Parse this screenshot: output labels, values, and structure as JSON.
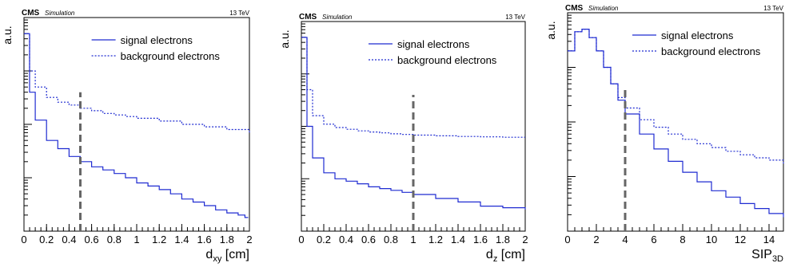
{
  "figure": {
    "experiment": "CMS",
    "tag": "Simulation",
    "energy": "13 TeV"
  },
  "chart_data": [
    {
      "type": "line",
      "title": "",
      "ylabel": "a.u.",
      "xlabel": "d",
      "xlabel_sub": "xy",
      "xlabel_unit": " [cm]",
      "xlim": [
        0,
        2
      ],
      "yscale": "log",
      "ylim": [
        1e-05,
        0.1
      ],
      "xticks": [
        0,
        0.2,
        0.4,
        0.6,
        0.8,
        1,
        1.2,
        1.4,
        1.6,
        1.8,
        2
      ],
      "xticklabels": [
        "0",
        "0.2",
        "0.4",
        "0.6",
        "0.8",
        "1",
        "1.2",
        "1.4",
        "1.6",
        "1.8",
        "2"
      ],
      "legend_position": "top-right",
      "cut_value": 0.5,
      "series": [
        {
          "name": "signal electrons",
          "style": "solid",
          "x": [
            0,
            0.05,
            0.1,
            0.2,
            0.3,
            0.4,
            0.5,
            0.6,
            0.7,
            0.8,
            0.9,
            1.0,
            1.1,
            1.2,
            1.3,
            1.4,
            1.5,
            1.6,
            1.7,
            1.8,
            1.9,
            1.96
          ],
          "y": [
            0.05,
            0.004,
            0.0012,
            0.0005,
            0.00035,
            0.00025,
            0.0002,
            0.00016,
            0.00014,
            0.00012,
            0.0001,
            8e-05,
            7e-05,
            6e-05,
            5e-05,
            4e-05,
            3.5e-05,
            3e-05,
            2.5e-05,
            2.2e-05,
            2e-05,
            1.8e-05
          ]
        },
        {
          "name": "background electrons",
          "style": "dotted",
          "x": [
            0,
            0.05,
            0.1,
            0.2,
            0.3,
            0.4,
            0.5,
            0.6,
            0.7,
            0.8,
            0.9,
            1.0,
            1.2,
            1.4,
            1.6,
            1.8,
            2.0
          ],
          "y": [
            0.05,
            0.01,
            0.005,
            0.0032,
            0.0026,
            0.0023,
            0.002,
            0.0018,
            0.0016,
            0.0015,
            0.0014,
            0.0013,
            0.00115,
            0.001,
            0.0009,
            0.0008,
            0.0007
          ]
        }
      ]
    },
    {
      "type": "line",
      "title": "",
      "ylabel": "a.u.",
      "xlabel": "d",
      "xlabel_sub": "z",
      "xlabel_unit": " [cm]",
      "xlim": [
        0,
        2
      ],
      "yscale": "log",
      "ylim": [
        1e-05,
        0.1
      ],
      "xticks": [
        0,
        0.2,
        0.4,
        0.6,
        0.8,
        1,
        1.2,
        1.4,
        1.6,
        1.8,
        2
      ],
      "xticklabels": [
        "0",
        "0.2",
        "0.4",
        "0.6",
        "0.8",
        "1",
        "1.2",
        "1.4",
        "1.6",
        "1.8",
        "2"
      ],
      "legend_position": "top-right",
      "cut_value": 1.0,
      "series": [
        {
          "name": "signal electrons",
          "style": "solid",
          "x": [
            0,
            0.05,
            0.1,
            0.2,
            0.3,
            0.4,
            0.5,
            0.6,
            0.7,
            0.8,
            0.9,
            1.0,
            1.2,
            1.4,
            1.6,
            1.8,
            2.0
          ],
          "y": [
            0.05,
            0.001,
            0.00025,
            0.00013,
            0.0001,
            9e-05,
            8e-05,
            7e-05,
            6.5e-05,
            6e-05,
            5.5e-05,
            5e-05,
            4.2e-05,
            3.6e-05,
            3e-05,
            2.8e-05,
            2.6e-05
          ]
        },
        {
          "name": "background electrons",
          "style": "dotted",
          "x": [
            0,
            0.05,
            0.1,
            0.2,
            0.3,
            0.4,
            0.5,
            0.6,
            0.7,
            0.8,
            0.9,
            1.0,
            1.2,
            1.4,
            1.6,
            1.8,
            2.0
          ],
          "y": [
            0.05,
            0.005,
            0.0016,
            0.0011,
            0.00095,
            0.00088,
            0.00082,
            0.00078,
            0.00075,
            0.00072,
            0.0007,
            0.00068,
            0.00066,
            0.00064,
            0.00063,
            0.00062,
            0.00062
          ]
        }
      ]
    },
    {
      "type": "line",
      "title": "",
      "ylabel": "a.u.",
      "xlabel": "SIP",
      "xlabel_sub": "3D",
      "xlabel_unit": "",
      "xlim": [
        0,
        15
      ],
      "yscale": "log",
      "ylim": [
        1e-05,
        0.1
      ],
      "xticks": [
        0,
        2,
        4,
        6,
        8,
        10,
        12,
        14
      ],
      "xticklabels": [
        "0",
        "2",
        "4",
        "6",
        "8",
        "10",
        "12",
        "14"
      ],
      "legend_position": "top-right",
      "cut_value": 4,
      "series": [
        {
          "name": "signal electrons",
          "style": "solid",
          "x": [
            0,
            0.5,
            1,
            1.5,
            2,
            2.5,
            3,
            3.5,
            4,
            5,
            6,
            7,
            8,
            9,
            10,
            11,
            12,
            13,
            14,
            15
          ],
          "y": [
            0.02,
            0.045,
            0.05,
            0.035,
            0.02,
            0.01,
            0.005,
            0.0025,
            0.0014,
            0.0006,
            0.00032,
            0.00019,
            0.00012,
            8e-05,
            5.5e-05,
            4.2e-05,
            3.2e-05,
            2.6e-05,
            2.1e-05,
            1.8e-05
          ]
        },
        {
          "name": "background electrons",
          "style": "dotted",
          "x": [
            0,
            0.5,
            1,
            1.5,
            2,
            2.5,
            3,
            3.5,
            4,
            5,
            6,
            7,
            8,
            9,
            10,
            11,
            12,
            13,
            14,
            15
          ],
          "y": [
            0.02,
            0.045,
            0.05,
            0.035,
            0.02,
            0.01,
            0.005,
            0.0028,
            0.0018,
            0.0011,
            0.0008,
            0.0006,
            0.00048,
            0.0004,
            0.00034,
            0.00029,
            0.00025,
            0.00022,
            0.0002,
            0.00017
          ]
        }
      ]
    }
  ]
}
